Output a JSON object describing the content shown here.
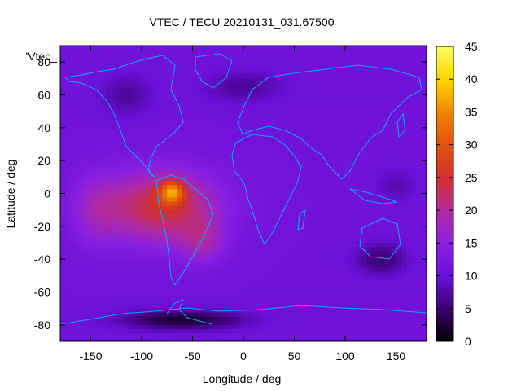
{
  "chart_data": {
    "type": "heatmap",
    "title": "VTEC / TECU 20210131_031.67500",
    "xlabel": "Longitude / deg",
    "ylabel": "Latitude / deg",
    "legend_key": "'Vtec_",
    "xlim": [
      -180,
      180
    ],
    "ylim": [
      -90,
      90
    ],
    "x_ticks": [
      -150,
      -100,
      -50,
      0,
      50,
      100,
      150
    ],
    "y_ticks": [
      -80,
      -60,
      -40,
      -20,
      0,
      20,
      40,
      60,
      80
    ],
    "colorbar": {
      "range": [
        0,
        45
      ],
      "ticks": [
        0,
        5,
        10,
        15,
        20,
        25,
        30,
        35,
        40,
        45
      ],
      "palette": [
        "#000000",
        "#3a0070",
        "#6a10d8",
        "#8a20e0",
        "#b02aa0",
        "#d03030",
        "#e05010",
        "#f08000",
        "#ffd000",
        "#ffff60"
      ]
    },
    "background_tec": 11,
    "features": [
      {
        "name": "equatorial-anomaly-americas",
        "lon": -70,
        "lat": 0,
        "peak": 42
      },
      {
        "name": "southern-crest",
        "lon": -40,
        "lat": -30,
        "peak": 27
      },
      {
        "name": "pacific-extension",
        "lon": -140,
        "lat": -10,
        "peak": 24
      },
      {
        "name": "antarctic-low",
        "lon": -60,
        "lat": -75,
        "peak": 2
      },
      {
        "name": "australia-low",
        "lon": 130,
        "lat": -35,
        "peak": 4
      },
      {
        "name": "pacific-northwest-low",
        "lon": -120,
        "lat": 55,
        "peak": 6
      }
    ],
    "grid": false
  }
}
